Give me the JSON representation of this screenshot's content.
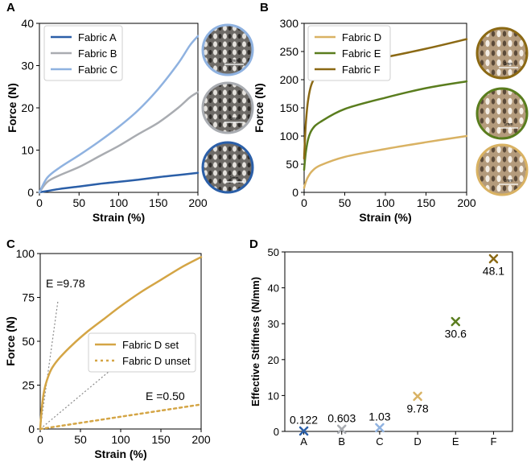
{
  "chart_data": [
    {
      "panel": "A",
      "type": "line",
      "xlabel": "Strain (%)",
      "ylabel": "Force (N)",
      "xlim": [
        0,
        200
      ],
      "ylim": [
        0,
        40
      ],
      "xticks": [
        0,
        50,
        100,
        150,
        200
      ],
      "yticks": [
        0,
        10,
        20,
        30,
        40
      ],
      "legend": "top-left",
      "series": [
        {
          "name": "Fabric A",
          "color": "#2b5fa8",
          "x": [
            0,
            25,
            50,
            75,
            100,
            125,
            150,
            175,
            200
          ],
          "y": [
            0,
            0.8,
            1.4,
            2.0,
            2.5,
            3.0,
            3.6,
            4.1,
            4.6
          ]
        },
        {
          "name": "Fabric B",
          "color": "#a9acb1",
          "x": [
            0,
            10,
            25,
            50,
            75,
            100,
            125,
            150,
            175,
            190,
            200
          ],
          "y": [
            0,
            2.5,
            4.0,
            6.0,
            8.5,
            11.0,
            13.8,
            16.5,
            20.0,
            22.5,
            23.7
          ]
        },
        {
          "name": "Fabric C",
          "color": "#8fb2e0",
          "x": [
            0,
            10,
            25,
            50,
            75,
            100,
            125,
            150,
            175,
            190,
            200
          ],
          "y": [
            0,
            3.5,
            5.8,
            8.8,
            12.0,
            15.5,
            19.5,
            24.5,
            30.5,
            34.8,
            37.0
          ]
        }
      ],
      "swatches": [
        {
          "name": "Fabric C",
          "ring_color": "#8fb2e0"
        },
        {
          "name": "Fabric B",
          "ring_color": "#a9acb1"
        },
        {
          "name": "Fabric A",
          "ring_color": "#2b5fa8"
        }
      ],
      "scale_label": "1mm"
    },
    {
      "panel": "B",
      "type": "line",
      "xlabel": "Strain (%)",
      "ylabel": "Force (N)",
      "xlim": [
        0,
        200
      ],
      "ylim": [
        0,
        300
      ],
      "xticks": [
        0,
        50,
        100,
        150,
        200
      ],
      "yticks": [
        0,
        50,
        100,
        150,
        200,
        250,
        300
      ],
      "legend": "top-left",
      "series": [
        {
          "name": "Fabric D",
          "color": "#d9b263",
          "x": [
            0,
            2,
            5,
            10,
            20,
            50,
            100,
            150,
            200
          ],
          "y": [
            8,
            18,
            28,
            38,
            48,
            63,
            77,
            89,
            100
          ]
        },
        {
          "name": "Fabric E",
          "color": "#5a7d1e",
          "x": [
            0,
            2,
            5,
            10,
            20,
            50,
            100,
            150,
            200
          ],
          "y": [
            40,
            70,
            95,
            112,
            125,
            148,
            168,
            185,
            197
          ]
        },
        {
          "name": "Fabric F",
          "color": "#8b6914",
          "x": [
            0,
            2,
            5,
            10,
            20,
            50,
            100,
            150,
            200
          ],
          "y": [
            60,
            120,
            165,
            195,
            212,
            228,
            240,
            255,
            272
          ]
        }
      ],
      "swatches": [
        {
          "name": "Fabric F",
          "ring_color": "#8b6914"
        },
        {
          "name": "Fabric E",
          "ring_color": "#5a7d1e"
        },
        {
          "name": "Fabric D",
          "ring_color": "#d9b263"
        }
      ],
      "scale_label": "1mm"
    },
    {
      "panel": "C",
      "type": "line",
      "xlabel": "Strain (%)",
      "ylabel": "Force (N)",
      "xlim": [
        0,
        200
      ],
      "ylim": [
        0,
        100
      ],
      "xticks": [
        0,
        50,
        100,
        150,
        200
      ],
      "yticks": [
        0,
        25,
        50,
        75,
        100
      ],
      "legend": "center-right",
      "series": [
        {
          "name": "Fabric D set",
          "color": "#d4a545",
          "style": "solid",
          "x": [
            0,
            2,
            5,
            10,
            15,
            25,
            40,
            60,
            80,
            100,
            125,
            150,
            175,
            200
          ],
          "y": [
            0,
            12,
            22,
            30,
            35,
            41,
            48,
            56,
            63,
            70,
            78,
            85,
            92,
            98
          ]
        },
        {
          "name": "Fabric D unset",
          "color": "#d4a545",
          "style": "dashed",
          "x": [
            0,
            50,
            100,
            150,
            200
          ],
          "y": [
            0,
            3.5,
            7,
            10.5,
            14
          ]
        }
      ],
      "annotations": [
        {
          "text": "E =9.78",
          "slope_line": {
            "x": [
              0,
              22
            ],
            "y": [
              0,
              73
            ]
          }
        },
        {
          "text": "E =0.50",
          "slope_line": {
            "x": [
              0,
              120
            ],
            "y": [
              0,
              46
            ]
          }
        }
      ]
    },
    {
      "panel": "D",
      "type": "scatter",
      "ylabel": "Effective Stiffness (N/mm)",
      "ylim": [
        0,
        50
      ],
      "yticks": [
        0,
        10,
        20,
        30,
        40,
        50
      ],
      "categories": [
        "A",
        "B",
        "C",
        "D",
        "E",
        "F"
      ],
      "values": [
        0.122,
        0.603,
        1.03,
        9.78,
        30.6,
        48.1
      ],
      "value_labels": [
        "0.122",
        "0.603",
        "1.03",
        "9.78",
        "30.6",
        "48.1"
      ],
      "colors": [
        "#2b5fa8",
        "#a9acb1",
        "#8fb2e0",
        "#d9b263",
        "#5a7d1e",
        "#8b6914"
      ],
      "marker": "x"
    }
  ],
  "panel_labels": [
    "A",
    "B",
    "C",
    "D"
  ]
}
